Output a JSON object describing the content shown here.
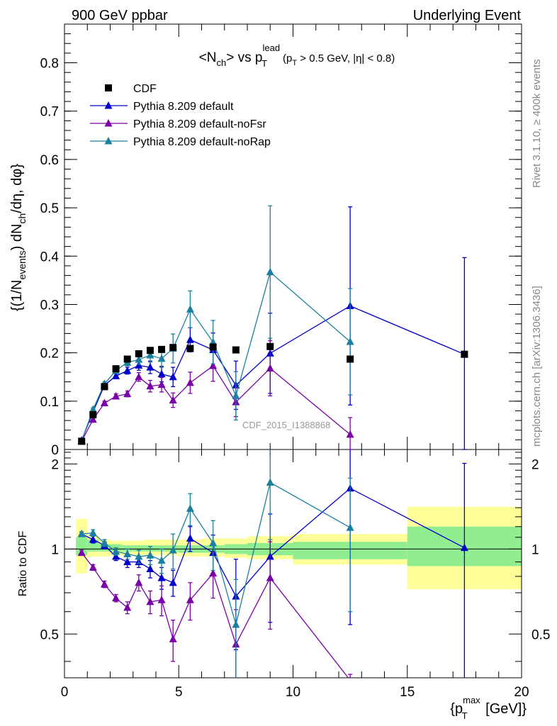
{
  "header": {
    "left": "900 GeV ppbar",
    "right": "Underlying Event"
  },
  "side_text": {
    "rivet": "Rivet 3.1.10, ≥ 400k events",
    "mcplots": "mcplots.cern.ch [arXiv:1306.3436]"
  },
  "watermark": "CDF_2015_I1388868",
  "chart_data": {
    "type": "scatter",
    "title": "<N_ch> vs p_T^lead (p_T > 0.5 GeV, |η| < 0.8)",
    "title_parts": {
      "a": "<N",
      "a_sub": "ch",
      "b": "> vs p",
      "b_sup": "lead",
      "b_sub": "T",
      "c": "(p",
      "c_sub": "T",
      "d": " > 0.5 GeV, |η| < 0.8)"
    },
    "ylabel": "{(1/N_events) dN_ch/dη, dφ}",
    "ylabel_parts": {
      "a": "{(1/N",
      "a_sub": "events",
      "b": ") dN",
      "b_sub": "ch",
      "c": "/dη, dφ}"
    },
    "xlabel": "{p_T^max [GeV]}",
    "xlabel_parts": {
      "a": "{p",
      "a_sup": "max",
      "a_sub": "T",
      "b": " [GeV]}"
    },
    "ratio_ylabel": "Ratio to CDF",
    "xlim": [
      0,
      20
    ],
    "ylim": [
      0,
      0.88
    ],
    "ratio_ylim": [
      0.35,
      2.25
    ],
    "x_ticks": [
      0,
      5,
      10,
      15,
      20
    ],
    "x_tick_labels": [
      "0",
      "5",
      "10",
      "15",
      "20"
    ],
    "y_ticks": [
      0,
      0.1,
      0.2,
      0.3,
      0.4,
      0.5,
      0.6,
      0.7,
      0.8
    ],
    "y_tick_labels": [
      "0",
      "0.1",
      "0.2",
      "0.3",
      "0.4",
      "0.5",
      "0.6",
      "0.7",
      "0.8"
    ],
    "ratio_ticks": [
      0.5,
      1,
      2
    ],
    "ratio_tick_labels": [
      "0.5",
      "1",
      "2"
    ],
    "legend_position": "top-left",
    "data": {
      "name": "CDF",
      "color": "#000000",
      "points": [
        {
          "x": 0.75,
          "y": 0.017,
          "xlo": 0.5,
          "xhi": 1.0
        },
        {
          "x": 1.25,
          "y": 0.072,
          "xlo": 1.0,
          "xhi": 1.5
        },
        {
          "x": 1.75,
          "y": 0.13,
          "xlo": 1.5,
          "xhi": 2.0
        },
        {
          "x": 2.25,
          "y": 0.167,
          "xlo": 2.0,
          "xhi": 2.5
        },
        {
          "x": 2.75,
          "y": 0.187,
          "xlo": 2.5,
          "xhi": 3.0
        },
        {
          "x": 3.25,
          "y": 0.198,
          "xlo": 3.0,
          "xhi": 3.5
        },
        {
          "x": 3.75,
          "y": 0.205,
          "xlo": 3.5,
          "xhi": 4.0
        },
        {
          "x": 4.25,
          "y": 0.207,
          "xlo": 4.0,
          "xhi": 4.5
        },
        {
          "x": 4.75,
          "y": 0.211,
          "xlo": 4.5,
          "xhi": 5.0
        },
        {
          "x": 5.5,
          "y": 0.209,
          "xlo": 5.0,
          "xhi": 6.0
        },
        {
          "x": 6.5,
          "y": 0.212,
          "xlo": 6.0,
          "xhi": 7.0
        },
        {
          "x": 7.5,
          "y": 0.206,
          "xlo": 7.0,
          "xhi": 8.0
        },
        {
          "x": 9.0,
          "y": 0.213,
          "xlo": 8.0,
          "xhi": 10.0
        },
        {
          "x": 12.5,
          "y": 0.187,
          "xlo": 10.0,
          "xhi": 15.0
        },
        {
          "x": 17.5,
          "y": 0.197,
          "xlo": 15.0,
          "xhi": 20.0
        }
      ]
    },
    "bands": {
      "stat_color": "#90ee90",
      "total_color": "#ffff99",
      "bins": [
        {
          "x0": 0.5,
          "x1": 1.0,
          "stat": [
            0.95,
            1.1
          ],
          "total": [
            0.82,
            1.28
          ]
        },
        {
          "x0": 1.0,
          "x1": 1.5,
          "stat": [
            0.98,
            1.08
          ],
          "total": [
            0.94,
            1.12
          ]
        },
        {
          "x0": 1.5,
          "x1": 2.0,
          "stat": [
            0.98,
            1.04
          ],
          "total": [
            0.94,
            1.08
          ]
        },
        {
          "x0": 2.0,
          "x1": 2.5,
          "stat": [
            0.98,
            1.04
          ],
          "total": [
            0.95,
            1.07
          ]
        },
        {
          "x0": 2.5,
          "x1": 3.0,
          "stat": [
            0.98,
            1.03
          ],
          "total": [
            0.95,
            1.07
          ]
        },
        {
          "x0": 3.0,
          "x1": 3.5,
          "stat": [
            0.98,
            1.03
          ],
          "total": [
            0.95,
            1.07
          ]
        },
        {
          "x0": 3.5,
          "x1": 4.0,
          "stat": [
            0.98,
            1.03
          ],
          "total": [
            0.95,
            1.08
          ]
        },
        {
          "x0": 4.0,
          "x1": 4.5,
          "stat": [
            0.98,
            1.03
          ],
          "total": [
            0.95,
            1.08
          ]
        },
        {
          "x0": 4.5,
          "x1": 5.0,
          "stat": [
            0.98,
            1.03
          ],
          "total": [
            0.95,
            1.08
          ]
        },
        {
          "x0": 5.0,
          "x1": 6.0,
          "stat": [
            0.97,
            1.03
          ],
          "total": [
            0.94,
            1.08
          ]
        },
        {
          "x0": 6.0,
          "x1": 7.0,
          "stat": [
            0.97,
            1.03
          ],
          "total": [
            0.94,
            1.09
          ]
        },
        {
          "x0": 7.0,
          "x1": 8.0,
          "stat": [
            0.96,
            1.04
          ],
          "total": [
            0.93,
            1.09
          ]
        },
        {
          "x0": 8.0,
          "x1": 10.0,
          "stat": [
            0.95,
            1.05
          ],
          "total": [
            0.92,
            1.11
          ]
        },
        {
          "x0": 10.0,
          "x1": 15.0,
          "stat": [
            0.92,
            1.06
          ],
          "total": [
            0.88,
            1.13
          ]
        },
        {
          "x0": 15.0,
          "x1": 20.0,
          "stat": [
            0.87,
            1.2
          ],
          "total": [
            0.72,
            1.41
          ]
        }
      ]
    },
    "series": [
      {
        "name": "Pythia 8.209 default",
        "color": "#0000cc",
        "points": [
          {
            "x": 0.75,
            "y": 0.019,
            "err": 0.002
          },
          {
            "x": 1.25,
            "y": 0.078,
            "err": 0.003
          },
          {
            "x": 1.75,
            "y": 0.133,
            "err": 0.004
          },
          {
            "x": 2.25,
            "y": 0.152,
            "err": 0.005
          },
          {
            "x": 2.75,
            "y": 0.163,
            "err": 0.007
          },
          {
            "x": 3.25,
            "y": 0.174,
            "err": 0.01
          },
          {
            "x": 3.75,
            "y": 0.17,
            "err": 0.013
          },
          {
            "x": 4.25,
            "y": 0.156,
            "err": 0.016
          },
          {
            "x": 4.75,
            "y": 0.15,
            "err": 0.02
          },
          {
            "x": 5.5,
            "y": 0.227,
            "err": 0.025
          },
          {
            "x": 6.5,
            "y": 0.206,
            "err": 0.035
          },
          {
            "x": 7.5,
            "y": 0.133,
            "err": 0.05
          },
          {
            "x": 9.0,
            "y": 0.199,
            "err": 0.083
          },
          {
            "x": 12.5,
            "y": 0.297,
            "err": 0.205
          },
          {
            "x": 17.5,
            "y": 0.197,
            "err": 0.2
          }
        ],
        "ratio": [
          1.13,
          1.08,
          1.03,
          0.94,
          0.9,
          0.9,
          0.85,
          0.79,
          0.76,
          1.09,
          0.97,
          0.68,
          0.94,
          1.64,
          1.01
        ],
        "ratio_err": [
          0.02,
          0.03,
          0.03,
          0.03,
          0.04,
          0.04,
          0.06,
          0.07,
          0.08,
          0.11,
          0.15,
          0.24,
          0.39,
          1.1,
          1.0
        ]
      },
      {
        "name": "Pythia 8.209 default-noFsr",
        "color": "#7a00a8",
        "points": [
          {
            "x": 0.75,
            "y": 0.017,
            "err": 0.002
          },
          {
            "x": 1.25,
            "y": 0.062,
            "err": 0.003
          },
          {
            "x": 1.75,
            "y": 0.096,
            "err": 0.004
          },
          {
            "x": 2.25,
            "y": 0.11,
            "err": 0.005
          },
          {
            "x": 2.75,
            "y": 0.115,
            "err": 0.006
          },
          {
            "x": 3.25,
            "y": 0.15,
            "err": 0.009
          },
          {
            "x": 3.75,
            "y": 0.131,
            "err": 0.012
          },
          {
            "x": 4.25,
            "y": 0.134,
            "err": 0.015
          },
          {
            "x": 4.75,
            "y": 0.102,
            "err": 0.015
          },
          {
            "x": 5.5,
            "y": 0.138,
            "err": 0.022
          },
          {
            "x": 6.5,
            "y": 0.173,
            "err": 0.032
          },
          {
            "x": 7.5,
            "y": 0.098,
            "err": 0.03
          },
          {
            "x": 9.0,
            "y": 0.168,
            "err": 0.057
          },
          {
            "x": 12.5,
            "y": 0.031,
            "err": 0.035
          }
        ],
        "ratio": [
          0.97,
          0.86,
          0.75,
          0.67,
          0.62,
          0.76,
          0.65,
          0.66,
          0.48,
          0.66,
          0.82,
          0.46,
          0.79,
          0.16
        ],
        "ratio_err": [
          0.02,
          0.02,
          0.02,
          0.02,
          0.03,
          0.05,
          0.06,
          0.08,
          0.08,
          0.1,
          0.15,
          0.15,
          0.27,
          0.2
        ]
      },
      {
        "name": "Pythia 8.209 default-noRap",
        "color": "#1a7fa0",
        "points": [
          {
            "x": 0.75,
            "y": 0.018,
            "err": 0.002
          },
          {
            "x": 1.25,
            "y": 0.083,
            "err": 0.003
          },
          {
            "x": 1.75,
            "y": 0.136,
            "err": 0.004
          },
          {
            "x": 2.25,
            "y": 0.163,
            "err": 0.005
          },
          {
            "x": 2.75,
            "y": 0.18,
            "err": 0.007
          },
          {
            "x": 3.25,
            "y": 0.186,
            "err": 0.01
          },
          {
            "x": 3.75,
            "y": 0.195,
            "err": 0.014
          },
          {
            "x": 4.25,
            "y": 0.188,
            "err": 0.018
          },
          {
            "x": 4.75,
            "y": 0.209,
            "err": 0.03
          },
          {
            "x": 5.5,
            "y": 0.29,
            "err": 0.038
          },
          {
            "x": 6.5,
            "y": 0.222,
            "err": 0.045
          },
          {
            "x": 7.5,
            "y": 0.111,
            "err": 0.05
          },
          {
            "x": 9.0,
            "y": 0.367,
            "err": 0.137
          },
          {
            "x": 12.5,
            "y": 0.223,
            "err": 0.11
          }
        ],
        "ratio": [
          1.13,
          1.14,
          1.05,
          0.98,
          0.96,
          0.94,
          0.95,
          0.91,
          0.99,
          1.39,
          1.05,
          0.54,
          1.72,
          1.19
        ],
        "ratio_err": [
          0.02,
          0.03,
          0.03,
          0.03,
          0.04,
          0.05,
          0.07,
          0.09,
          0.14,
          0.18,
          0.21,
          0.24,
          0.64,
          0.59
        ]
      }
    ]
  }
}
